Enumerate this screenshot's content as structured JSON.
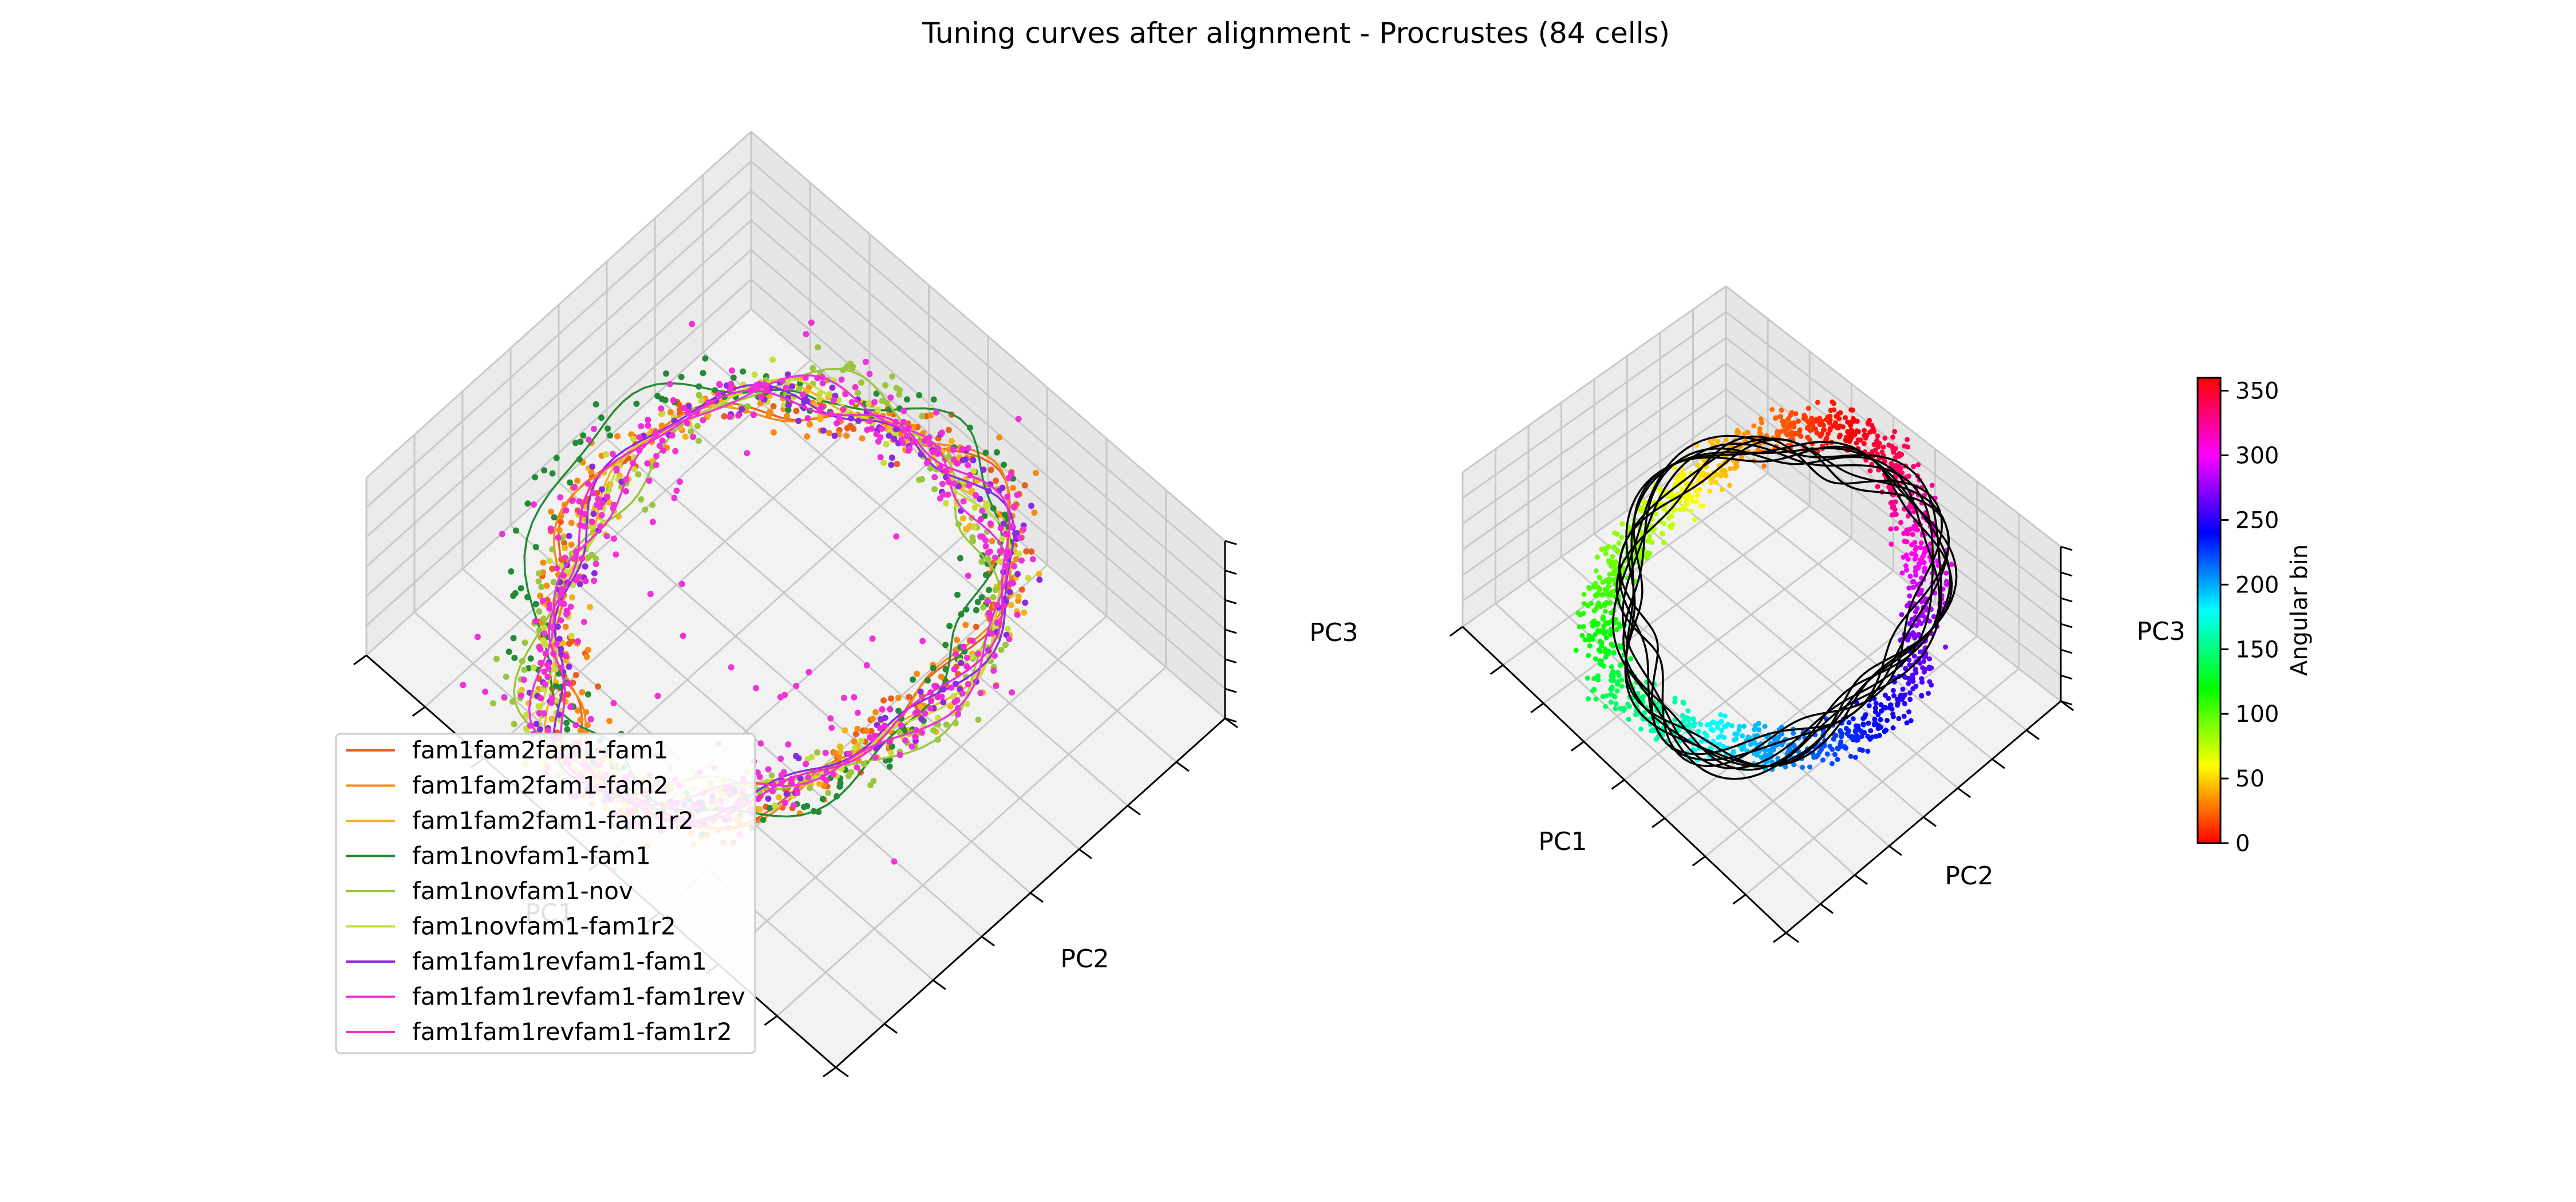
{
  "chart_data": {
    "title": "Tuning curves after alignment - Procrustes (84 cells)",
    "type": "scatter",
    "panels": [
      {
        "kind": "3d-scatter-with-curves",
        "colored_by": "session",
        "axis_labels": {
          "x": "PC1",
          "y": "PC2",
          "z": "PC3"
        },
        "legend_placement": "lower-left",
        "series": [
          {
            "name": "fam1fam2fam1-fam1",
            "color": "#e8601c"
          },
          {
            "name": "fam1fam2fam1-fam2",
            "color": "#f68a12"
          },
          {
            "name": "fam1fam2fam1-fam1r2",
            "color": "#f2b416"
          },
          {
            "name": "fam1novfam1-fam1",
            "color": "#238b35"
          },
          {
            "name": "fam1novfam1-nov",
            "color": "#9bc53d"
          },
          {
            "name": "fam1novfam1-fam1r2",
            "color": "#c8dc3c"
          },
          {
            "name": "fam1fam1revfam1-fam1",
            "color": "#8a2be2"
          },
          {
            "name": "fam1fam1revfam1-fam1rev",
            "color": "#ee33d8"
          },
          {
            "name": "fam1fam1revfam1-fam1r2",
            "color": "#f22ad6"
          }
        ]
      },
      {
        "kind": "3d-scatter-with-curves",
        "colored_by": "angular bin",
        "curve_color": "#000000",
        "axis_labels": {
          "x": "PC1",
          "y": "PC2",
          "z": "PC3"
        },
        "colorbar": {
          "label": "Angular bin",
          "colormap": "hsv",
          "range": [
            0,
            360
          ],
          "ticks": [
            "0",
            "50",
            "100",
            "150",
            "200",
            "250",
            "300",
            "350"
          ]
        }
      }
    ]
  }
}
